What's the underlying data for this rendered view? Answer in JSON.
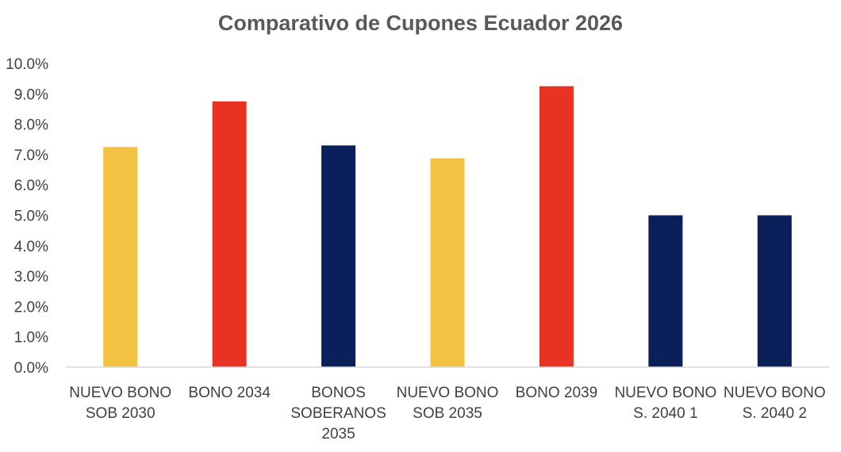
{
  "chart_data": {
    "type": "bar",
    "title": "Comparativo de Cupones Ecuador 2026",
    "xlabel": "",
    "ylabel": "",
    "ylim": [
      0,
      10
    ],
    "yticks": [
      "0.0%",
      "1.0%",
      "2.0%",
      "3.0%",
      "4.0%",
      "5.0%",
      "6.0%",
      "7.0%",
      "8.0%",
      "9.0%",
      "10.0%"
    ],
    "grid": false,
    "legend": "none",
    "categories": [
      [
        "NUEVO BONO",
        "SOB 2030"
      ],
      [
        "BONO 2034"
      ],
      [
        "BONOS",
        "SOBERANOS",
        "2035"
      ],
      [
        "NUEVO BONO",
        "SOB 2035"
      ],
      [
        "BONO 2039"
      ],
      [
        "NUEVO BONO",
        "S. 2040 1"
      ],
      [
        "NUEVO BONO",
        "S. 2040 2"
      ]
    ],
    "values": [
      7.25,
      8.75,
      7.3,
      6.875,
      9.25,
      5.0,
      5.0
    ],
    "colors": [
      "#F4C242",
      "#E83323",
      "#0B1F5B",
      "#F4C242",
      "#E83323",
      "#0B1F5B",
      "#0B1F5B"
    ]
  }
}
